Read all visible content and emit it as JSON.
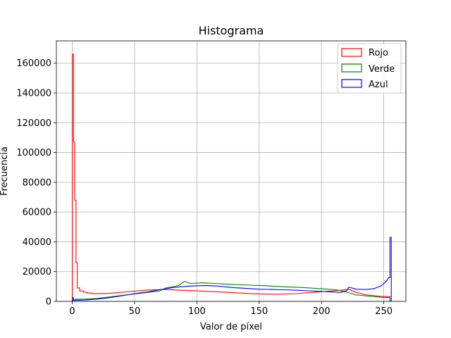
{
  "chart_data": {
    "type": "line",
    "style": "step-histogram",
    "title": "Histograma",
    "xlabel": "Valor de píxel",
    "ylabel": "Frecuencia",
    "xlim": [
      -12.75,
      267.75
    ],
    "ylim": [
      0,
      175000
    ],
    "xticks": [
      0,
      50,
      100,
      150,
      200,
      250
    ],
    "yticks": [
      0,
      20000,
      40000,
      60000,
      80000,
      100000,
      120000,
      140000,
      160000
    ],
    "xtick_labels": [
      "0",
      "50",
      "100",
      "150",
      "200",
      "250"
    ],
    "ytick_labels": [
      "0",
      "20000",
      "40000",
      "60000",
      "80000",
      "100000",
      "120000",
      "140000",
      "160000"
    ],
    "grid": true,
    "legend_position": "top-right",
    "series": [
      {
        "name": "Rojo",
        "color": "#ff0000",
        "points": [
          [
            0,
            0
          ],
          [
            0,
            166000
          ],
          [
            1,
            166000
          ],
          [
            1,
            107000
          ],
          [
            2,
            107000
          ],
          [
            2,
            68000
          ],
          [
            3,
            68000
          ],
          [
            3,
            26000
          ],
          [
            4,
            26000
          ],
          [
            4,
            9000
          ],
          [
            6,
            9000
          ],
          [
            6,
            7000
          ],
          [
            9,
            7000
          ],
          [
            9,
            6200
          ],
          [
            12,
            6200
          ],
          [
            12,
            5600
          ],
          [
            16,
            5600
          ],
          [
            16,
            5200
          ],
          [
            30,
            5400
          ],
          [
            45,
            6500
          ],
          [
            60,
            7600
          ],
          [
            75,
            8000
          ],
          [
            90,
            7400
          ],
          [
            105,
            6900
          ],
          [
            120,
            6300
          ],
          [
            135,
            5600
          ],
          [
            150,
            5000
          ],
          [
            165,
            4800
          ],
          [
            180,
            5200
          ],
          [
            195,
            6200
          ],
          [
            205,
            6800
          ],
          [
            215,
            7400
          ],
          [
            222,
            8000
          ],
          [
            228,
            6000
          ],
          [
            235,
            4500
          ],
          [
            245,
            3600
          ],
          [
            250,
            3200
          ],
          [
            255,
            3200
          ],
          [
            255,
            0
          ],
          [
            256,
            0
          ]
        ]
      },
      {
        "name": "Verde",
        "color": "#008000",
        "points": [
          [
            0,
            0
          ],
          [
            0,
            800
          ],
          [
            2,
            800
          ],
          [
            2,
            1400
          ],
          [
            10,
            1500
          ],
          [
            20,
            2000
          ],
          [
            30,
            3000
          ],
          [
            40,
            4000
          ],
          [
            50,
            5000
          ],
          [
            60,
            6000
          ],
          [
            70,
            7000
          ],
          [
            75,
            9000
          ],
          [
            85,
            10500
          ],
          [
            90,
            13500
          ],
          [
            95,
            12000
          ],
          [
            105,
            12500
          ],
          [
            115,
            12000
          ],
          [
            125,
            11500
          ],
          [
            140,
            11000
          ],
          [
            155,
            10500
          ],
          [
            170,
            9800
          ],
          [
            185,
            9300
          ],
          [
            200,
            8500
          ],
          [
            212,
            7800
          ],
          [
            220,
            6200
          ],
          [
            228,
            4300
          ],
          [
            240,
            3400
          ],
          [
            250,
            2600
          ],
          [
            255,
            2600
          ],
          [
            255,
            0
          ],
          [
            256,
            0
          ]
        ]
      },
      {
        "name": "Azul",
        "color": "#0000ff",
        "points": [
          [
            0,
            0
          ],
          [
            0,
            2500
          ],
          [
            1,
            2500
          ],
          [
            1,
            700
          ],
          [
            10,
            900
          ],
          [
            20,
            1500
          ],
          [
            30,
            2500
          ],
          [
            40,
            3800
          ],
          [
            50,
            5200
          ],
          [
            60,
            6300
          ],
          [
            70,
            7800
          ],
          [
            80,
            9200
          ],
          [
            90,
            10000
          ],
          [
            100,
            10500
          ],
          [
            110,
            10600
          ],
          [
            120,
            10000
          ],
          [
            130,
            9200
          ],
          [
            140,
            8700
          ],
          [
            150,
            8200
          ],
          [
            160,
            8000
          ],
          [
            170,
            7800
          ],
          [
            180,
            7500
          ],
          [
            190,
            7100
          ],
          [
            200,
            6700
          ],
          [
            210,
            6300
          ],
          [
            215,
            6000
          ],
          [
            220,
            7000
          ],
          [
            222,
            9500
          ],
          [
            228,
            8200
          ],
          [
            235,
            8000
          ],
          [
            242,
            8500
          ],
          [
            248,
            10500
          ],
          [
            252,
            13500
          ],
          [
            254,
            16000
          ],
          [
            255,
            16000
          ],
          [
            255,
            43000
          ],
          [
            256,
            43000
          ],
          [
            256,
            0
          ]
        ]
      }
    ]
  }
}
